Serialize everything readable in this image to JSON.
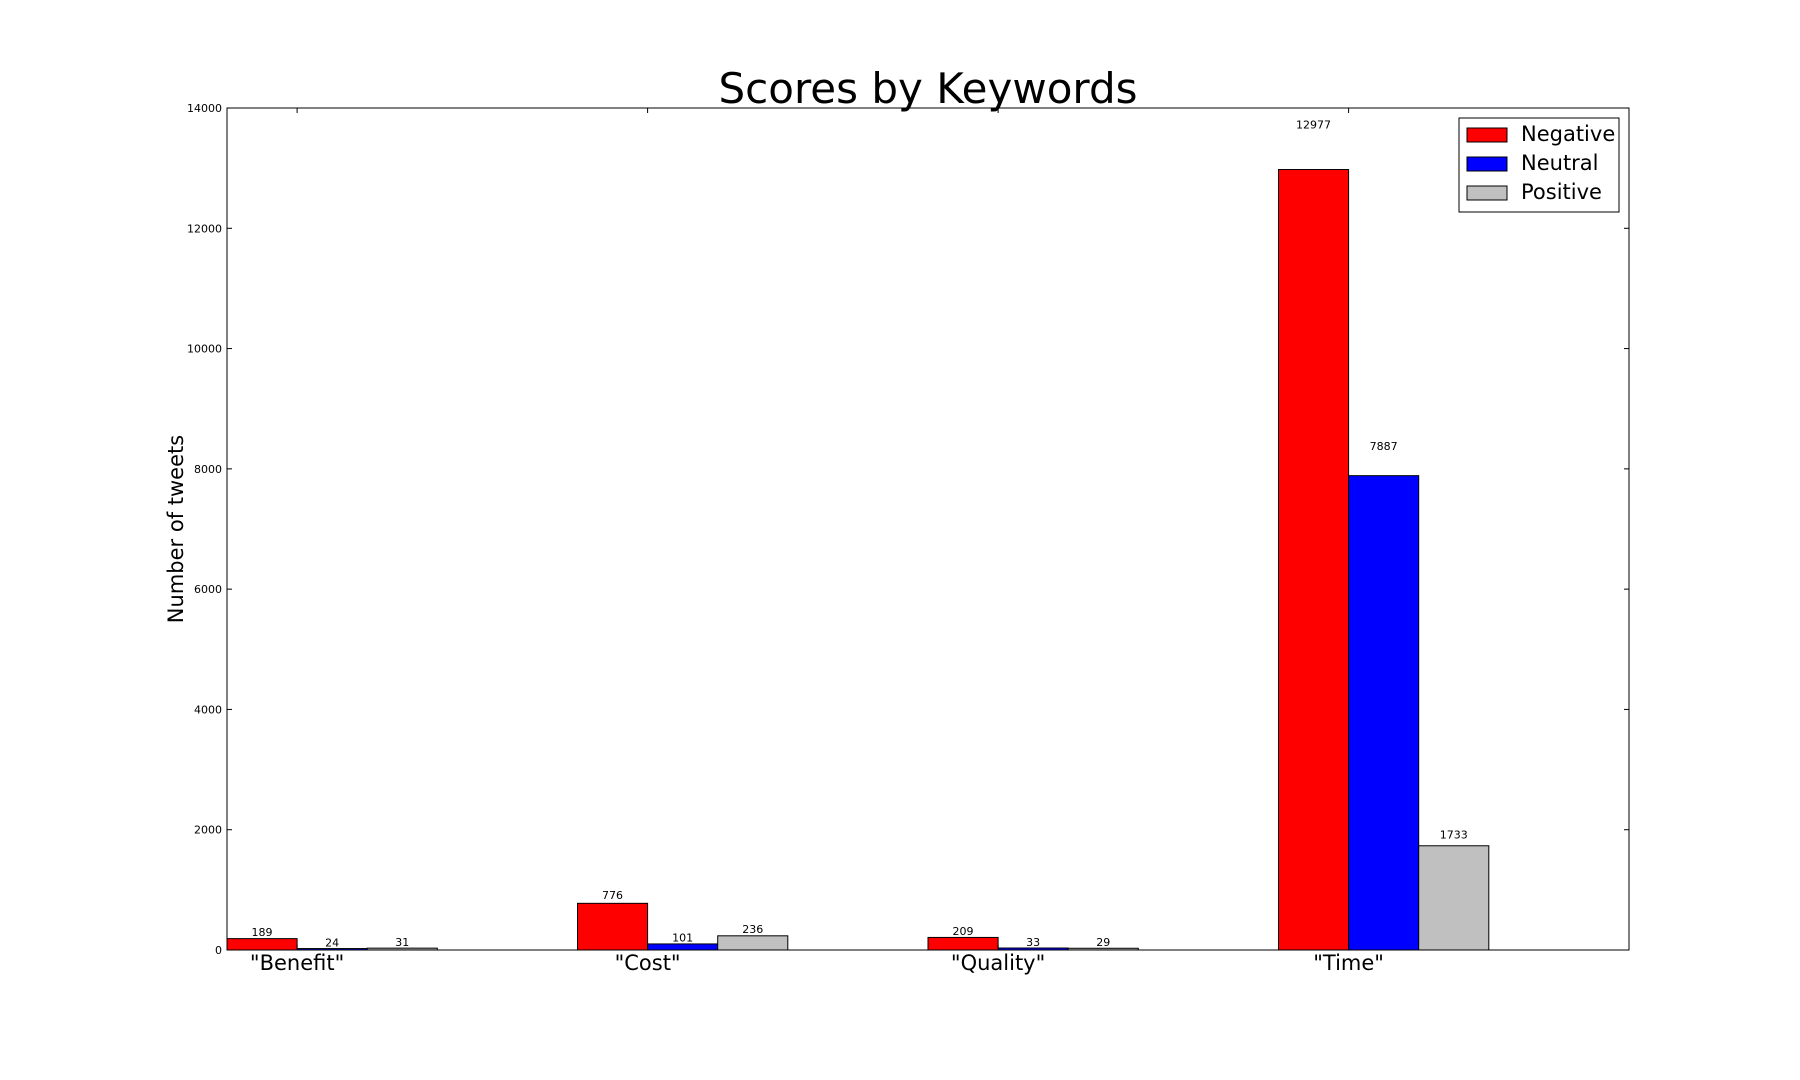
{
  "chart_data": {
    "type": "bar",
    "title": "Scores by Keywords",
    "xlabel": "",
    "ylabel": "Number of tweets",
    "categories": [
      "\"Benefit\"",
      "\"Cost\"",
      "\"Quality\"",
      "\"Time\""
    ],
    "series": [
      {
        "name": "Negative",
        "color": "#ff0000",
        "values": [
          189,
          776,
          209,
          12977
        ]
      },
      {
        "name": "Neutral",
        "color": "#0000ff",
        "values": [
          24,
          101,
          33,
          7887
        ]
      },
      {
        "name": "Positive",
        "color": "#c0c0c0",
        "values": [
          31,
          236,
          29,
          1733
        ]
      }
    ],
    "ylim": [
      0,
      14000
    ],
    "yticks": [
      0,
      2000,
      4000,
      6000,
      8000,
      10000,
      12000,
      14000
    ],
    "legend_position": "top-right",
    "grid": false
  }
}
